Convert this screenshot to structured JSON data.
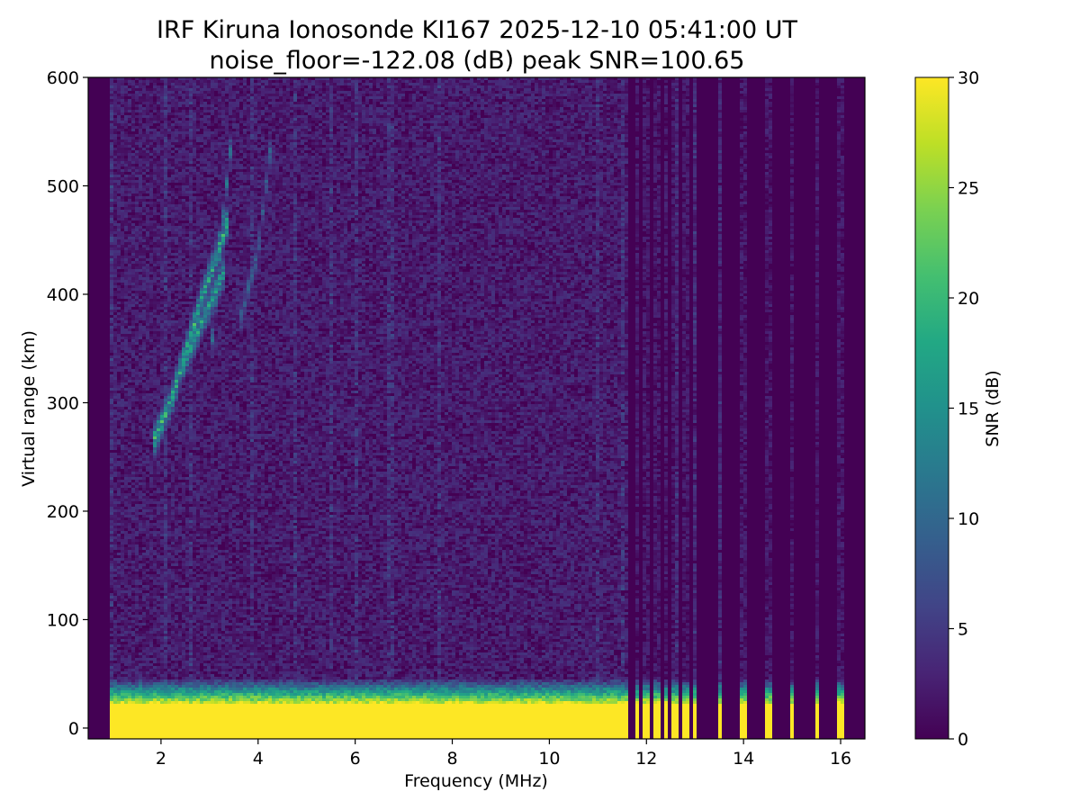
{
  "chart_data": {
    "type": "heatmap",
    "title": "IRF Kiruna Ionosonde KI167 2025-12-10 05:41:00  UT",
    "subtitle": "noise_floor=-122.08 (dB) peak SNR=100.65",
    "xlabel": "Frequency (MHz)",
    "ylabel": "Virtual range (km)",
    "colorbar_label": "SNR (dB)",
    "colormap": "viridis",
    "xlim": [
      0.5,
      16.5
    ],
    "ylim": [
      -10,
      600
    ],
    "clim": [
      0,
      30
    ],
    "xticks": [
      2,
      4,
      6,
      8,
      10,
      12,
      14,
      16
    ],
    "yticks": [
      0,
      100,
      200,
      300,
      400,
      500,
      600
    ],
    "cticks": [
      0,
      5,
      10,
      15,
      20,
      25,
      30
    ],
    "data_freq_range": [
      0.95,
      16.3
    ],
    "continuous_sweep_end_mhz": 11.65,
    "ground_echo": {
      "range_km": [
        -10,
        45
      ],
      "snr_db": 30
    },
    "discrete_channels_mhz": [
      11.8,
      12.0,
      12.2,
      12.4,
      12.6,
      12.8,
      13.0,
      13.5,
      14.0,
      14.5,
      15.0,
      15.5,
      16.0
    ],
    "traces": [
      {
        "freq_mhz": [
          1.85,
          2.2,
          2.5,
          2.8,
          3.1,
          3.4
        ],
        "range_km": [
          265,
          300,
          345,
          390,
          430,
          470
        ],
        "snr_db": 20
      },
      {
        "freq_mhz": [
          2.4,
          2.9,
          3.3
        ],
        "range_km": [
          330,
          380,
          420
        ],
        "snr_db": 18
      },
      {
        "freq_mhz": [
          3.0,
          3.3,
          3.5
        ],
        "range_km": [
          330,
          480,
          560
        ],
        "snr_db": 12
      },
      {
        "freq_mhz": [
          3.6,
          4.0,
          4.3
        ],
        "range_km": [
          370,
          440,
          550
        ],
        "snr_db": 10
      }
    ]
  }
}
